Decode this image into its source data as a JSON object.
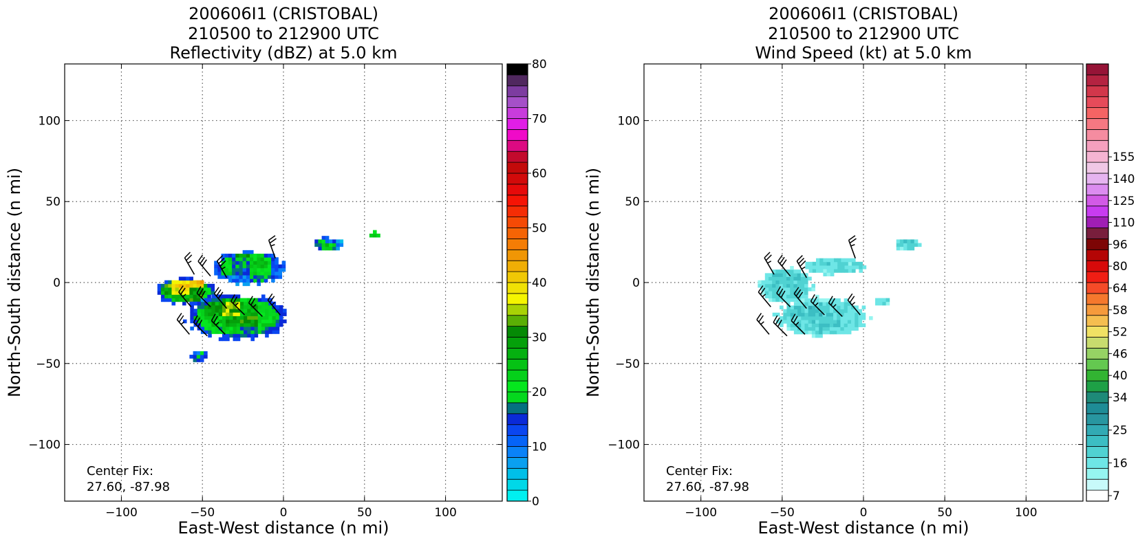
{
  "chart_data": [
    {
      "type": "heatmap",
      "title_lines": [
        "200606I1 (CRISTOBAL)",
        "210500 to 212900 UTC",
        "Reflectivity (dBZ) at 5.0 km"
      ],
      "xlabel": "East-West distance (n mi)",
      "ylabel": "North-South distance (n mi)",
      "xlim": [
        -135,
        135
      ],
      "ylim": [
        -135,
        135
      ],
      "xticks": [
        -100,
        -50,
        0,
        50,
        100
      ],
      "yticks": [
        -100,
        -50,
        0,
        50,
        100
      ],
      "x_tick_labels": [
        "−100",
        "−50",
        "0",
        "50",
        "100"
      ],
      "y_tick_labels": [
        "−100",
        "−50",
        "0",
        "50",
        "100"
      ],
      "grid": true,
      "annotation_lines": [
        "Center Fix:",
        "27.60, -87.98"
      ],
      "colorbar": {
        "labels": [
          "0",
          "10",
          "20",
          "30",
          "40",
          "50",
          "60",
          "70",
          "80"
        ],
        "colors": [
          "#00f0f0",
          "#00d8e8",
          "#00bfe8",
          "#0aa0f0",
          "#0a82f8",
          "#0564f8",
          "#0a46f0",
          "#0a2ad8",
          "#057080",
          "#05d81e",
          "#05e61e",
          "#05d01a",
          "#05c214",
          "#05b010",
          "#05a00a",
          "#058a05",
          "#5aaf05",
          "#a8d205",
          "#f5f500",
          "#f0e105",
          "#f0c805",
          "#f0ae05",
          "#f09605",
          "#f57d05",
          "#f56405",
          "#f54a05",
          "#f52d05",
          "#f51405",
          "#e60a0a",
          "#d20a0a",
          "#c30a0a",
          "#c30a2d",
          "#dc0a82",
          "#f00ac8",
          "#e11ee6",
          "#c83cdc",
          "#a550c8",
          "#7d3ca0",
          "#50285f",
          "#000000"
        ]
      },
      "regions": [
        {
          "x0": -80,
          "x1": -40,
          "y0": -14,
          "y1": 4,
          "values": [
            [
              25,
              30,
              34,
              38
            ],
            [
              32,
              40,
              42,
              28
            ],
            [
              28,
              38,
              30,
              24
            ],
            [
              22,
              26,
              30,
              22
            ]
          ],
          "edge": 12
        },
        {
          "x0": -45,
          "x1": 3,
          "y0": -2,
          "y1": 20,
          "values": [
            [
              24,
              30,
              22,
              20
            ],
            [
              22,
              18,
              24,
              14
            ],
            [
              20,
              14,
              22,
              12
            ],
            [
              12,
              10,
              18,
              12
            ]
          ],
          "edge": 10
        },
        {
          "x0": -62,
          "x1": 5,
          "y0": -36,
          "y1": -6,
          "values": [
            [
              10,
              20,
              26,
              22,
              18,
              24
            ],
            [
              20,
              28,
              34,
              26,
              22,
              20
            ],
            [
              22,
              24,
              28,
              30,
              24,
              20
            ],
            [
              14,
              20,
              22,
              18,
              20,
              22
            ]
          ],
          "edge": 12
        },
        {
          "x0": -58,
          "x1": -47,
          "y0": -49,
          "y1": -42,
          "values": [
            [
              10,
              22
            ],
            [
              18,
              12
            ]
          ],
          "edge": 12
        },
        {
          "x0": 17,
          "x1": 38,
          "y0": 20,
          "y1": 28,
          "values": [
            [
              22,
              12,
              8
            ],
            [
              20,
              24,
              10
            ]
          ],
          "edge": 12
        },
        {
          "x0": 53,
          "x1": 59,
          "y0": 28,
          "y1": 32,
          "values": [
            [
              22
            ]
          ],
          "edge": 22
        }
      ],
      "wind_barbs": [
        {
          "x": -55,
          "y": 5,
          "dir": 330,
          "speed": 25
        },
        {
          "x": -45,
          "y": 4,
          "dir": 320,
          "speed": 30
        },
        {
          "x": -35,
          "y": 3,
          "dir": 330,
          "speed": 35
        },
        {
          "x": -57,
          "y": -15,
          "dir": 320,
          "speed": 25
        },
        {
          "x": -45,
          "y": -15,
          "dir": 315,
          "speed": 30
        },
        {
          "x": -35,
          "y": -16,
          "dir": 320,
          "speed": 30
        },
        {
          "x": -24,
          "y": -20,
          "dir": 315,
          "speed": 25
        },
        {
          "x": -13,
          "y": -21,
          "dir": 315,
          "speed": 25
        },
        {
          "x": -2,
          "y": -20,
          "dir": 320,
          "speed": 25
        },
        {
          "x": -58,
          "y": -32,
          "dir": 320,
          "speed": 25
        },
        {
          "x": -47,
          "y": -33,
          "dir": 315,
          "speed": 30
        },
        {
          "x": -36,
          "y": -32,
          "dir": 315,
          "speed": 25
        },
        {
          "x": -5,
          "y": 15,
          "dir": 340,
          "speed": 25
        }
      ]
    },
    {
      "type": "heatmap",
      "title_lines": [
        "200606I1 (CRISTOBAL)",
        "210500 to 212900 UTC",
        "Wind Speed (kt) at 5.0 km"
      ],
      "xlabel": "East-West distance (n mi)",
      "ylabel": "North-South distance (n mi)",
      "xlim": [
        -135,
        135
      ],
      "ylim": [
        -135,
        135
      ],
      "xticks": [
        -100,
        -50,
        0,
        50,
        100
      ],
      "yticks": [
        -100,
        -50,
        0,
        50,
        100
      ],
      "x_tick_labels": [
        "−100",
        "−50",
        "0",
        "50",
        "100"
      ],
      "y_tick_labels": [
        "−100",
        "−50",
        "0",
        "50",
        "100"
      ],
      "grid": true,
      "annotation_lines": [
        "Center Fix:",
        "27.60, -87.98"
      ],
      "colorbar": {
        "labels": [
          "7",
          "16",
          "25",
          "34",
          "40",
          "46",
          "52",
          "58",
          "64",
          "80",
          "96",
          "110",
          "125",
          "140",
          "155"
        ],
        "label_positions": [
          0,
          3,
          6,
          9,
          11,
          13,
          15,
          17,
          19,
          21,
          23,
          25,
          27,
          29,
          31
        ],
        "colors": [
          "#ffffff",
          "#c8fafa",
          "#96f5f0",
          "#6ee6e6",
          "#50d2d2",
          "#3cbec3",
          "#32aab4",
          "#2896a0",
          "#1e8c96",
          "#1e8a78",
          "#1ea046",
          "#32b432",
          "#64c850",
          "#96d264",
          "#c8dc6e",
          "#f0e164",
          "#f5be50",
          "#f59a3c",
          "#f5782d",
          "#f54b28",
          "#f01e14",
          "#d70a0a",
          "#b40505",
          "#7d0505",
          "#781e3c",
          "#a01eb4",
          "#c83cf0",
          "#d25ae6",
          "#dc8cf0",
          "#e6b4f0",
          "#f0c8e6",
          "#f5b4d2",
          "#f5a0be",
          "#f58ca0",
          "#f57882",
          "#f56464",
          "#e64b5a",
          "#d2374b",
          "#b42341",
          "#961437"
        ]
      },
      "regions": [
        {
          "x0": -65,
          "x1": -30,
          "y0": -14,
          "y1": 10,
          "values": [
            [
              22,
              24,
              23,
              22
            ],
            [
              23,
              26,
              24,
              22
            ],
            [
              22,
              24,
              25,
              23
            ],
            [
              21,
              22,
              23,
              22
            ]
          ],
          "edge": 18
        },
        {
          "x0": -38,
          "x1": 2,
          "y0": 4,
          "y1": 16,
          "values": [
            [
              22,
              23,
              22,
              24
            ],
            [
              23,
              22,
              23,
              22
            ]
          ],
          "edge": 18
        },
        {
          "x0": -56,
          "x1": 5,
          "y0": -34,
          "y1": -8,
          "values": [
            [
              22,
              23,
              24,
              22,
              23,
              22
            ],
            [
              23,
              24,
              28,
              24,
              23,
              22
            ],
            [
              22,
              23,
              24,
              25,
              23,
              22
            ],
            [
              21,
              22,
              23,
              22,
              22,
              21
            ]
          ],
          "edge": 18
        },
        {
          "x0": 5,
          "x1": 17,
          "y0": -14,
          "y1": -9,
          "values": [
            [
              22,
              23
            ]
          ],
          "edge": 18
        },
        {
          "x0": 18,
          "x1": 36,
          "y0": 20,
          "y1": 27,
          "values": [
            [
              22,
              23,
              22
            ],
            [
              23,
              22,
              22
            ]
          ],
          "edge": 18
        }
      ],
      "wind_barbs": [
        {
          "x": -55,
          "y": 5,
          "dir": 330,
          "speed": 25
        },
        {
          "x": -45,
          "y": 4,
          "dir": 320,
          "speed": 30
        },
        {
          "x": -35,
          "y": 3,
          "dir": 330,
          "speed": 35
        },
        {
          "x": -57,
          "y": -15,
          "dir": 320,
          "speed": 25
        },
        {
          "x": -45,
          "y": -15,
          "dir": 315,
          "speed": 30
        },
        {
          "x": -35,
          "y": -16,
          "dir": 320,
          "speed": 30
        },
        {
          "x": -24,
          "y": -20,
          "dir": 315,
          "speed": 25
        },
        {
          "x": -13,
          "y": -21,
          "dir": 315,
          "speed": 25
        },
        {
          "x": -2,
          "y": -20,
          "dir": 320,
          "speed": 25
        },
        {
          "x": -58,
          "y": -32,
          "dir": 320,
          "speed": 25
        },
        {
          "x": -47,
          "y": -33,
          "dir": 315,
          "speed": 30
        },
        {
          "x": -36,
          "y": -32,
          "dir": 315,
          "speed": 25
        },
        {
          "x": -5,
          "y": 15,
          "dir": 340,
          "speed": 25
        }
      ]
    }
  ]
}
